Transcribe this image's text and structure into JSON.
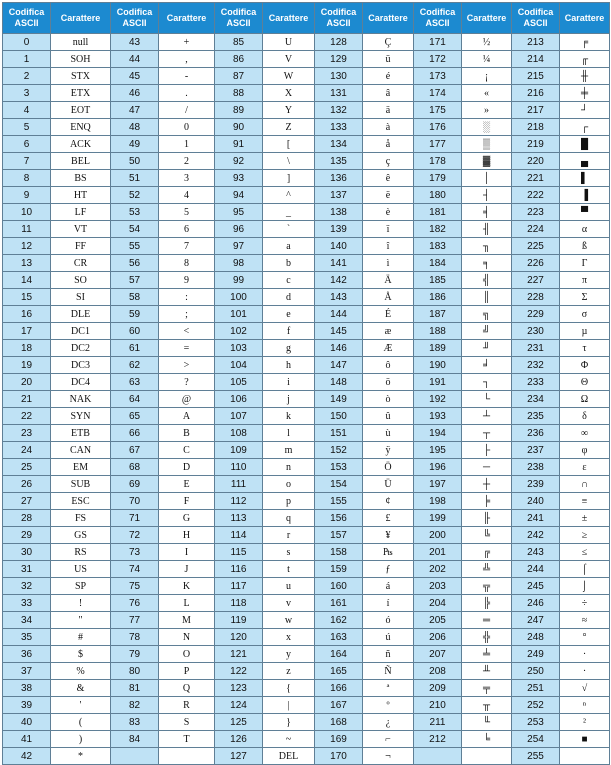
{
  "headers": {
    "code_line1": "Codifica",
    "code_line2": "ASCII",
    "char": "Carattere"
  },
  "rows": [
    [
      [
        "0",
        "null"
      ],
      [
        "43",
        "+"
      ],
      [
        "85",
        "U"
      ],
      [
        "128",
        "Ç"
      ],
      [
        "171",
        "½"
      ],
      [
        "213",
        "╒"
      ]
    ],
    [
      [
        "1",
        "SOH"
      ],
      [
        "44",
        ","
      ],
      [
        "86",
        "V"
      ],
      [
        "129",
        "ü"
      ],
      [
        "172",
        "¼"
      ],
      [
        "214",
        "╓"
      ]
    ],
    [
      [
        "2",
        "STX"
      ],
      [
        "45",
        "-"
      ],
      [
        "87",
        "W"
      ],
      [
        "130",
        "é"
      ],
      [
        "173",
        "¡"
      ],
      [
        "215",
        "╫"
      ]
    ],
    [
      [
        "3",
        "ETX"
      ],
      [
        "46",
        "."
      ],
      [
        "88",
        "X"
      ],
      [
        "131",
        "â"
      ],
      [
        "174",
        "«"
      ],
      [
        "216",
        "╪"
      ]
    ],
    [
      [
        "4",
        "EOT"
      ],
      [
        "47",
        "/"
      ],
      [
        "89",
        "Y"
      ],
      [
        "132",
        "ä"
      ],
      [
        "175",
        "»"
      ],
      [
        "217",
        "┘"
      ]
    ],
    [
      [
        "5",
        "ENQ"
      ],
      [
        "48",
        "0"
      ],
      [
        "90",
        "Z"
      ],
      [
        "133",
        "à"
      ],
      [
        "176",
        "░"
      ],
      [
        "218",
        "┌"
      ]
    ],
    [
      [
        "6",
        "ACK"
      ],
      [
        "49",
        "1"
      ],
      [
        "91",
        "["
      ],
      [
        "134",
        "å"
      ],
      [
        "177",
        "▒"
      ],
      [
        "219",
        "█"
      ]
    ],
    [
      [
        "7",
        "BEL"
      ],
      [
        "50",
        "2"
      ],
      [
        "92",
        "\\"
      ],
      [
        "135",
        "ç"
      ],
      [
        "178",
        "▓"
      ],
      [
        "220",
        "▄"
      ]
    ],
    [
      [
        "8",
        "BS"
      ],
      [
        "51",
        "3"
      ],
      [
        "93",
        "]"
      ],
      [
        "136",
        "ê"
      ],
      [
        "179",
        "│"
      ],
      [
        "221",
        "▌"
      ]
    ],
    [
      [
        "9",
        "HT"
      ],
      [
        "52",
        "4"
      ],
      [
        "94",
        "^"
      ],
      [
        "137",
        "ë"
      ],
      [
        "180",
        "┤"
      ],
      [
        "222",
        "▐"
      ]
    ],
    [
      [
        "10",
        "LF"
      ],
      [
        "53",
        "5"
      ],
      [
        "95",
        "_"
      ],
      [
        "138",
        "è"
      ],
      [
        "181",
        "╡"
      ],
      [
        "223",
        "▀"
      ]
    ],
    [
      [
        "11",
        "VT"
      ],
      [
        "54",
        "6"
      ],
      [
        "96",
        "`"
      ],
      [
        "139",
        "ï"
      ],
      [
        "182",
        "╢"
      ],
      [
        "224",
        "α"
      ]
    ],
    [
      [
        "12",
        "FF"
      ],
      [
        "55",
        "7"
      ],
      [
        "97",
        "a"
      ],
      [
        "140",
        "î"
      ],
      [
        "183",
        "╖"
      ],
      [
        "225",
        "ß"
      ]
    ],
    [
      [
        "13",
        "CR"
      ],
      [
        "56",
        "8"
      ],
      [
        "98",
        "b"
      ],
      [
        "141",
        "ì"
      ],
      [
        "184",
        "╕"
      ],
      [
        "226",
        "Γ"
      ]
    ],
    [
      [
        "14",
        "SO"
      ],
      [
        "57",
        "9"
      ],
      [
        "99",
        "c"
      ],
      [
        "142",
        "Ä"
      ],
      [
        "185",
        "╣"
      ],
      [
        "227",
        "π"
      ]
    ],
    [
      [
        "15",
        "SI"
      ],
      [
        "58",
        ":"
      ],
      [
        "100",
        "d"
      ],
      [
        "143",
        "Å"
      ],
      [
        "186",
        "║"
      ],
      [
        "228",
        "Σ"
      ]
    ],
    [
      [
        "16",
        "DLE"
      ],
      [
        "59",
        ";"
      ],
      [
        "101",
        "e"
      ],
      [
        "144",
        "É"
      ],
      [
        "187",
        "╗"
      ],
      [
        "229",
        "σ"
      ]
    ],
    [
      [
        "17",
        "DC1"
      ],
      [
        "60",
        "<"
      ],
      [
        "102",
        "f"
      ],
      [
        "145",
        "æ"
      ],
      [
        "188",
        "╝"
      ],
      [
        "230",
        "µ"
      ]
    ],
    [
      [
        "18",
        "DC2"
      ],
      [
        "61",
        "="
      ],
      [
        "103",
        "g"
      ],
      [
        "146",
        "Æ"
      ],
      [
        "189",
        "╜"
      ],
      [
        "231",
        "τ"
      ]
    ],
    [
      [
        "19",
        "DC3"
      ],
      [
        "62",
        ">"
      ],
      [
        "104",
        "h"
      ],
      [
        "147",
        "ô"
      ],
      [
        "190",
        "╛"
      ],
      [
        "232",
        "Φ"
      ]
    ],
    [
      [
        "20",
        "DC4"
      ],
      [
        "63",
        "?"
      ],
      [
        "105",
        "i"
      ],
      [
        "148",
        "ö"
      ],
      [
        "191",
        "┐"
      ],
      [
        "233",
        "Θ"
      ]
    ],
    [
      [
        "21",
        "NAK"
      ],
      [
        "64",
        "@"
      ],
      [
        "106",
        "j"
      ],
      [
        "149",
        "ò"
      ],
      [
        "192",
        "└"
      ],
      [
        "234",
        "Ω"
      ]
    ],
    [
      [
        "22",
        "SYN"
      ],
      [
        "65",
        "A"
      ],
      [
        "107",
        "k"
      ],
      [
        "150",
        "û"
      ],
      [
        "193",
        "┴"
      ],
      [
        "235",
        "δ"
      ]
    ],
    [
      [
        "23",
        "ETB"
      ],
      [
        "66",
        "B"
      ],
      [
        "108",
        "l"
      ],
      [
        "151",
        "ù"
      ],
      [
        "194",
        "┬"
      ],
      [
        "236",
        "∞"
      ]
    ],
    [
      [
        "24",
        "CAN"
      ],
      [
        "67",
        "C"
      ],
      [
        "109",
        "m"
      ],
      [
        "152",
        "ÿ"
      ],
      [
        "195",
        "├"
      ],
      [
        "237",
        "φ"
      ]
    ],
    [
      [
        "25",
        "EM"
      ],
      [
        "68",
        "D"
      ],
      [
        "110",
        "n"
      ],
      [
        "153",
        "Ö"
      ],
      [
        "196",
        "─"
      ],
      [
        "238",
        "ε"
      ]
    ],
    [
      [
        "26",
        "SUB"
      ],
      [
        "69",
        "E"
      ],
      [
        "111",
        "o"
      ],
      [
        "154",
        "Ü"
      ],
      [
        "197",
        "┼"
      ],
      [
        "239",
        "∩"
      ]
    ],
    [
      [
        "27",
        "ESC"
      ],
      [
        "70",
        "F"
      ],
      [
        "112",
        "p"
      ],
      [
        "155",
        "¢"
      ],
      [
        "198",
        "╞"
      ],
      [
        "240",
        "≡"
      ]
    ],
    [
      [
        "28",
        "FS"
      ],
      [
        "71",
        "G"
      ],
      [
        "113",
        "q"
      ],
      [
        "156",
        "£"
      ],
      [
        "199",
        "╟"
      ],
      [
        "241",
        "±"
      ]
    ],
    [
      [
        "29",
        "GS"
      ],
      [
        "72",
        "H"
      ],
      [
        "114",
        "r"
      ],
      [
        "157",
        "¥"
      ],
      [
        "200",
        "╚"
      ],
      [
        "242",
        "≥"
      ]
    ],
    [
      [
        "30",
        "RS"
      ],
      [
        "73",
        "I"
      ],
      [
        "115",
        "s"
      ],
      [
        "158",
        "₧"
      ],
      [
        "201",
        "╔"
      ],
      [
        "243",
        "≤"
      ]
    ],
    [
      [
        "31",
        "US"
      ],
      [
        "74",
        "J"
      ],
      [
        "116",
        "t"
      ],
      [
        "159",
        "ƒ"
      ],
      [
        "202",
        "╩"
      ],
      [
        "244",
        "⌠"
      ]
    ],
    [
      [
        "32",
        "SP"
      ],
      [
        "75",
        "K"
      ],
      [
        "117",
        "u"
      ],
      [
        "160",
        "á"
      ],
      [
        "203",
        "╦"
      ],
      [
        "245",
        "⌡"
      ]
    ],
    [
      [
        "33",
        "!"
      ],
      [
        "76",
        "L"
      ],
      [
        "118",
        "v"
      ],
      [
        "161",
        "í"
      ],
      [
        "204",
        "╠"
      ],
      [
        "246",
        "÷"
      ]
    ],
    [
      [
        "34",
        "\""
      ],
      [
        "77",
        "M"
      ],
      [
        "119",
        "w"
      ],
      [
        "162",
        "ó"
      ],
      [
        "205",
        "═"
      ],
      [
        "247",
        "≈"
      ]
    ],
    [
      [
        "35",
        "#"
      ],
      [
        "78",
        "N"
      ],
      [
        "120",
        "x"
      ],
      [
        "163",
        "ú"
      ],
      [
        "206",
        "╬"
      ],
      [
        "248",
        "°"
      ]
    ],
    [
      [
        "36",
        "$"
      ],
      [
        "79",
        "O"
      ],
      [
        "121",
        "y"
      ],
      [
        "164",
        "ñ"
      ],
      [
        "207",
        "╧"
      ],
      [
        "249",
        "·"
      ]
    ],
    [
      [
        "37",
        "%"
      ],
      [
        "80",
        "P"
      ],
      [
        "122",
        "z"
      ],
      [
        "165",
        "Ñ"
      ],
      [
        "208",
        "╨"
      ],
      [
        "250",
        "·"
      ]
    ],
    [
      [
        "38",
        "&"
      ],
      [
        "81",
        "Q"
      ],
      [
        "123",
        "{"
      ],
      [
        "166",
        "ª"
      ],
      [
        "209",
        "╤"
      ],
      [
        "251",
        "√"
      ]
    ],
    [
      [
        "39",
        "'"
      ],
      [
        "82",
        "R"
      ],
      [
        "124",
        "|"
      ],
      [
        "167",
        "º"
      ],
      [
        "210",
        "╥"
      ],
      [
        "252",
        "ⁿ"
      ]
    ],
    [
      [
        "40",
        "("
      ],
      [
        "83",
        "S"
      ],
      [
        "125",
        "}"
      ],
      [
        "168",
        "¿"
      ],
      [
        "211",
        "╙"
      ],
      [
        "253",
        "²"
      ]
    ],
    [
      [
        "41",
        ")"
      ],
      [
        "84",
        "T"
      ],
      [
        "126",
        "~"
      ],
      [
        "169",
        "⌐"
      ],
      [
        "212",
        "╘"
      ],
      [
        "254",
        "■"
      ]
    ],
    [
      [
        "42",
        "*"
      ],
      [
        "",
        ""
      ],
      [
        "127",
        "DEL"
      ],
      [
        "170",
        "¬"
      ],
      [
        "",
        ""
      ],
      [
        "255",
        ""
      ]
    ]
  ]
}
